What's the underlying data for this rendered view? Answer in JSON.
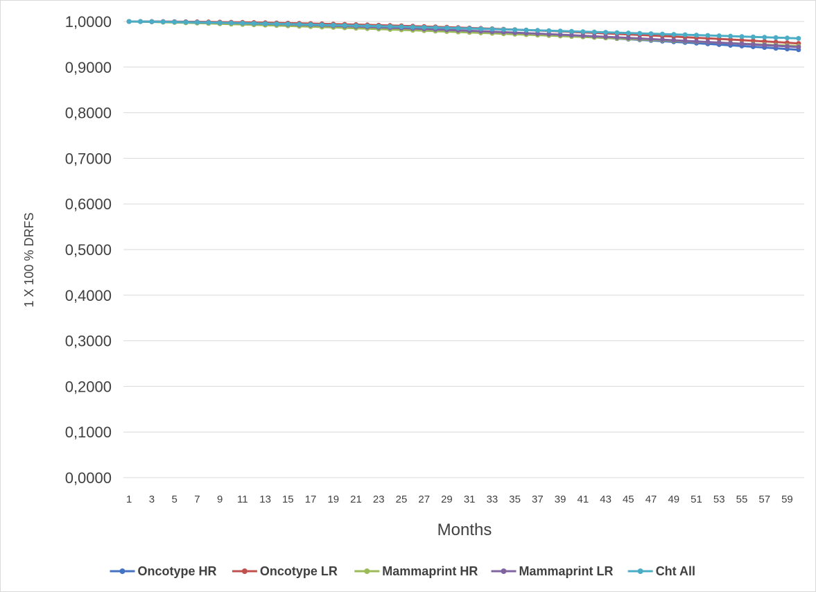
{
  "chart_data": {
    "type": "line",
    "title": "",
    "xlabel": "Months",
    "ylabel": "1 X 100 % DRFS",
    "ylim": [
      0,
      1
    ],
    "yticks": [
      "0,0000",
      "0,1000",
      "0,2000",
      "0,3000",
      "0,4000",
      "0,5000",
      "0,6000",
      "0,7000",
      "0,8000",
      "0,9000",
      "1,0000"
    ],
    "xtick_labels": [
      "1",
      "3",
      "5",
      "7",
      "9",
      "11",
      "13",
      "15",
      "17",
      "19",
      "21",
      "23",
      "25",
      "27",
      "29",
      "31",
      "33",
      "35",
      "37",
      "39",
      "41",
      "43",
      "45",
      "47",
      "49",
      "51",
      "53",
      "55",
      "57",
      "59"
    ],
    "x": [
      1,
      2,
      3,
      4,
      5,
      6,
      7,
      8,
      9,
      10,
      11,
      12,
      13,
      14,
      15,
      16,
      17,
      18,
      19,
      20,
      21,
      22,
      23,
      24,
      25,
      26,
      27,
      28,
      29,
      30,
      31,
      32,
      33,
      34,
      35,
      36,
      37,
      38,
      39,
      40,
      41,
      42,
      43,
      44,
      45,
      46,
      47,
      48,
      49,
      50,
      51,
      52,
      53,
      54,
      55,
      56,
      57,
      58,
      59,
      60
    ],
    "grid": true,
    "legend_position": "bottom",
    "series": [
      {
        "name": "Oncotype HR",
        "color": "#4472C4",
        "y_start": 1.0,
        "y_end": 0.938,
        "curve": 1.6
      },
      {
        "name": "Oncotype LR",
        "color": "#C0504D",
        "y_start": 1.0,
        "y_end": 0.952,
        "curve": 1.8
      },
      {
        "name": "Mammaprint HR",
        "color": "#9BBB59",
        "y_start": 1.0,
        "y_end": 0.946,
        "curve": 1.2
      },
      {
        "name": "Mammaprint LR",
        "color": "#8064A2",
        "y_start": 1.0,
        "y_end": 0.944,
        "curve": 1.5
      },
      {
        "name": "Cht All",
        "color": "#4BACC6",
        "y_start": 1.0,
        "y_end": 0.963,
        "curve": 1.3
      }
    ]
  }
}
